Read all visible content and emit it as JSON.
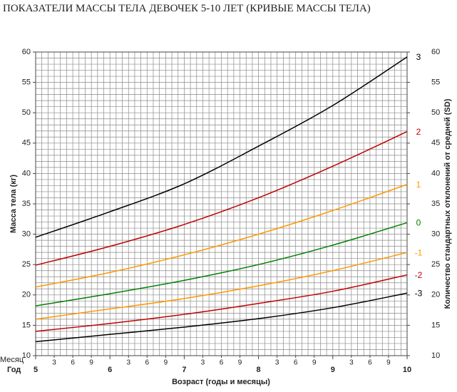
{
  "chart_data": {
    "type": "line",
    "title": "ПОКАЗАТЕЛИ МАССЫ ТЕЛА ДЕВОЧЕК 5-10 ЛЕТ (КРИВЫЕ МАССЫ ТЕЛА)",
    "y_label": "Масса тела (кг)",
    "y2_label": "Количество стандартных отклонений от средней (SD)",
    "x_label": "Возраст (годы и месяцы)",
    "x_row_labels": {
      "month": "Месяц",
      "year": "Год"
    },
    "x": [
      60,
      72,
      84,
      96,
      108,
      120
    ],
    "xlim": [
      60,
      120
    ],
    "xticks": [
      {
        "value": 60,
        "label": "5"
      },
      {
        "value": 72,
        "label": "6"
      },
      {
        "value": 84,
        "label": "7"
      },
      {
        "value": 96,
        "label": "8"
      },
      {
        "value": 108,
        "label": "9"
      },
      {
        "value": 120,
        "label": "10"
      }
    ],
    "xticks_minor": [
      {
        "value": 63,
        "label": "3"
      },
      {
        "value": 66,
        "label": "6"
      },
      {
        "value": 69,
        "label": "9"
      },
      {
        "value": 75,
        "label": "3"
      },
      {
        "value": 78,
        "label": "6"
      },
      {
        "value": 81,
        "label": "9"
      },
      {
        "value": 87,
        "label": "3"
      },
      {
        "value": 90,
        "label": "6"
      },
      {
        "value": 93,
        "label": "9"
      },
      {
        "value": 99,
        "label": "3"
      },
      {
        "value": 102,
        "label": "6"
      },
      {
        "value": 105,
        "label": "9"
      },
      {
        "value": 111,
        "label": "3"
      },
      {
        "value": 114,
        "label": "6"
      },
      {
        "value": 117,
        "label": "9"
      }
    ],
    "ylim": [
      10,
      60
    ],
    "yticks": [
      10,
      15,
      20,
      25,
      30,
      35,
      40,
      45,
      50,
      55,
      60
    ],
    "y2lim": [
      10,
      60
    ],
    "y2ticks": [
      10,
      15,
      20,
      25,
      30,
      35,
      40,
      45,
      50,
      55,
      60
    ],
    "grid": {
      "x_step": 1,
      "y_step": 1
    },
    "series": [
      {
        "name": "3",
        "color": "#000000",
        "values": [
          29.5,
          33.7,
          38.3,
          44.5,
          51.2,
          59.2
        ]
      },
      {
        "name": "2",
        "color": "#c00000",
        "values": [
          24.9,
          28.0,
          31.6,
          36.0,
          41.2,
          46.9
        ]
      },
      {
        "name": "1",
        "color": "#ff9900",
        "values": [
          21.3,
          23.7,
          26.6,
          30.0,
          33.9,
          38.2
        ]
      },
      {
        "name": "0",
        "color": "#008000",
        "values": [
          18.2,
          20.2,
          22.4,
          25.0,
          28.2,
          31.9
        ]
      },
      {
        "name": "-1",
        "color": "#ff9900",
        "values": [
          16.0,
          17.7,
          19.4,
          21.5,
          24.0,
          27.0
        ]
      },
      {
        "name": "-2",
        "color": "#c00000",
        "values": [
          14.0,
          15.3,
          16.8,
          18.6,
          20.6,
          23.3
        ]
      },
      {
        "name": "-3",
        "color": "#000000",
        "values": [
          12.3,
          13.5,
          14.7,
          16.1,
          17.9,
          20.3
        ]
      }
    ]
  }
}
